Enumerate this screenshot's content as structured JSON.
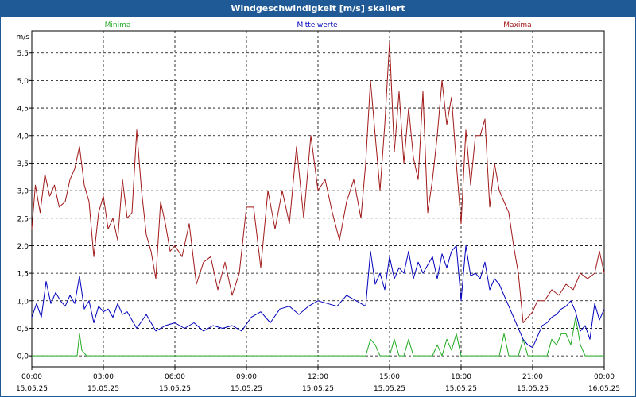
{
  "window": {
    "title": "Windgeschwindigkeit [m/s] skaliert"
  },
  "chart_data": {
    "type": "line",
    "title": "Windgeschwindigkeit [m/s] skaliert",
    "ylabel": "m/s",
    "xlabel": "",
    "ylim": [
      -0.2,
      5.9
    ],
    "xlim": [
      0,
      24
    ],
    "yticks": [
      "0,0",
      "0,5",
      "1,0",
      "1,5",
      "2,0",
      "2,5",
      "3,0",
      "3,5",
      "4,0",
      "4,5",
      "5,0",
      "5,5"
    ],
    "yticks_values": [
      0,
      0.5,
      1.0,
      1.5,
      2.0,
      2.5,
      3.0,
      3.5,
      4.0,
      4.5,
      5.0,
      5.5
    ],
    "xticks": [
      {
        "h": 0,
        "time": "00:00",
        "date": "15.05.25"
      },
      {
        "h": 3,
        "time": "03:00",
        "date": "15.05.25"
      },
      {
        "h": 6,
        "time": "06:00",
        "date": "15.05.25"
      },
      {
        "h": 9,
        "time": "09:00",
        "date": "15.05.25"
      },
      {
        "h": 12,
        "time": "12:00",
        "date": "15.05.25"
      },
      {
        "h": 15,
        "time": "15:00",
        "date": "15.05.25"
      },
      {
        "h": 18,
        "time": "18:00",
        "date": "15.05.25"
      },
      {
        "h": 21,
        "time": "21:00",
        "date": "15.05.25"
      },
      {
        "h": 24,
        "time": "00:00",
        "date": "16.05.25"
      }
    ],
    "grid": true,
    "legend_position": "top",
    "series": [
      {
        "name": "Minima",
        "color": "#22aa22",
        "x": [
          0,
          1.9,
          2.0,
          2.1,
          2.3,
          14.0,
          14.2,
          14.4,
          14.6,
          15.0,
          15.2,
          15.4,
          15.6,
          15.8,
          16.0,
          16.2,
          16.4,
          16.6,
          16.8,
          17.0,
          17.2,
          17.4,
          17.6,
          17.8,
          18.0,
          19.6,
          19.8,
          20.0,
          20.4,
          20.6,
          20.8,
          21.0,
          21.2,
          21.4,
          21.6,
          21.8,
          22.0,
          22.2,
          22.4,
          22.6,
          22.8,
          23.0,
          23.2,
          23.4,
          24.0
        ],
        "values": [
          0,
          0,
          0.4,
          0.1,
          0,
          0,
          0.3,
          0.2,
          0,
          0,
          0.3,
          0,
          0,
          0.3,
          0,
          0,
          0,
          0,
          0,
          0.2,
          0,
          0.3,
          0.1,
          0.4,
          0,
          0,
          0.4,
          0,
          0,
          0.3,
          0,
          0,
          0,
          0,
          0,
          0.3,
          0.2,
          0.4,
          0.4,
          0.2,
          0.7,
          0.2,
          0,
          0,
          0
        ]
      },
      {
        "name": "Mittelwerte",
        "color": "#0000bb",
        "x": [
          0,
          0.2,
          0.4,
          0.6,
          0.8,
          1.0,
          1.2,
          1.4,
          1.6,
          1.8,
          2.0,
          2.2,
          2.4,
          2.6,
          2.8,
          3.0,
          3.2,
          3.4,
          3.6,
          3.8,
          4.0,
          4.4,
          4.8,
          5.2,
          5.6,
          6.0,
          6.4,
          6.8,
          7.2,
          7.6,
          8.0,
          8.4,
          8.8,
          9.2,
          9.6,
          10.0,
          10.4,
          10.8,
          11.2,
          11.6,
          12.0,
          12.4,
          12.8,
          13.2,
          13.6,
          14.0,
          14.2,
          14.4,
          14.6,
          14.8,
          15.0,
          15.2,
          15.4,
          15.6,
          15.8,
          16.0,
          16.2,
          16.4,
          16.6,
          16.8,
          17.0,
          17.2,
          17.4,
          17.6,
          17.8,
          18.0,
          18.2,
          18.4,
          18.6,
          18.8,
          19.0,
          19.2,
          19.4,
          19.6,
          19.8,
          20.0,
          20.2,
          20.4,
          20.6,
          20.8,
          21.0,
          21.2,
          21.4,
          21.6,
          21.8,
          22.0,
          22.2,
          22.4,
          22.6,
          22.8,
          23.0,
          23.2,
          23.4,
          23.6,
          23.8,
          24.0
        ],
        "values": [
          0.7,
          0.95,
          0.7,
          1.35,
          0.95,
          1.15,
          1.0,
          0.9,
          1.1,
          0.95,
          1.45,
          0.85,
          1.0,
          0.6,
          0.9,
          0.8,
          0.85,
          0.7,
          0.95,
          0.75,
          0.8,
          0.5,
          0.75,
          0.45,
          0.55,
          0.6,
          0.5,
          0.6,
          0.45,
          0.55,
          0.5,
          0.55,
          0.45,
          0.7,
          0.8,
          0.6,
          0.85,
          0.9,
          0.75,
          0.9,
          1.0,
          0.95,
          0.9,
          1.1,
          1.0,
          0.9,
          1.9,
          1.3,
          1.5,
          1.2,
          1.8,
          1.4,
          1.6,
          1.5,
          1.9,
          1.4,
          1.7,
          1.5,
          1.65,
          1.8,
          1.4,
          1.85,
          1.6,
          1.9,
          2.0,
          1.0,
          2.0,
          1.45,
          1.5,
          1.4,
          1.7,
          1.2,
          1.4,
          1.3,
          1.1,
          0.9,
          0.7,
          0.5,
          0.3,
          0.2,
          0.15,
          0.35,
          0.55,
          0.6,
          0.7,
          0.75,
          0.85,
          0.9,
          1.0,
          0.8,
          0.45,
          0.55,
          0.3,
          0.95,
          0.65,
          0.85
        ]
      },
      {
        "name": "Maxima",
        "color": "#a01818",
        "x": [
          0,
          0.15,
          0.35,
          0.55,
          0.75,
          0.95,
          1.15,
          1.4,
          1.6,
          1.8,
          2.0,
          2.2,
          2.4,
          2.6,
          2.8,
          3.0,
          3.2,
          3.4,
          3.6,
          3.8,
          4.0,
          4.2,
          4.4,
          4.6,
          4.8,
          5.0,
          5.2,
          5.4,
          5.6,
          5.8,
          6.0,
          6.3,
          6.6,
          6.9,
          7.2,
          7.5,
          7.8,
          8.1,
          8.4,
          8.7,
          9.0,
          9.3,
          9.6,
          9.9,
          10.2,
          10.5,
          10.8,
          11.1,
          11.4,
          11.7,
          12.0,
          12.3,
          12.6,
          12.9,
          13.2,
          13.5,
          13.8,
          14.0,
          14.2,
          14.4,
          14.6,
          14.8,
          15.0,
          15.2,
          15.4,
          15.6,
          15.8,
          16.0,
          16.2,
          16.4,
          16.6,
          16.8,
          17.0,
          17.2,
          17.4,
          17.6,
          17.8,
          18.0,
          18.2,
          18.4,
          18.6,
          18.8,
          19.0,
          19.2,
          19.4,
          19.6,
          19.8,
          20.0,
          20.2,
          20.4,
          20.6,
          20.8,
          21.0,
          21.2,
          21.5,
          21.8,
          22.1,
          22.4,
          22.7,
          23.0,
          23.3,
          23.6,
          23.8,
          24.0
        ],
        "values": [
          2.3,
          3.1,
          2.6,
          3.3,
          2.9,
          3.1,
          2.7,
          2.8,
          3.2,
          3.4,
          3.8,
          3.1,
          2.8,
          1.8,
          2.6,
          2.9,
          2.3,
          2.5,
          2.1,
          3.2,
          2.5,
          2.6,
          4.1,
          3.0,
          2.2,
          1.9,
          1.4,
          2.8,
          2.4,
          1.9,
          2.0,
          1.8,
          2.4,
          1.3,
          1.7,
          1.8,
          1.2,
          1.7,
          1.1,
          1.5,
          2.7,
          2.7,
          1.6,
          3.0,
          2.3,
          3.0,
          2.4,
          3.8,
          2.5,
          4.0,
          3.0,
          3.2,
          2.6,
          2.1,
          2.8,
          3.2,
          2.5,
          3.5,
          5.0,
          4.0,
          3.0,
          4.2,
          5.7,
          3.7,
          4.8,
          3.5,
          4.5,
          3.6,
          3.2,
          4.8,
          2.6,
          3.2,
          4.0,
          5.0,
          4.2,
          4.7,
          3.5,
          2.4,
          4.1,
          3.1,
          4.0,
          4.0,
          4.3,
          2.7,
          3.5,
          3.0,
          2.8,
          2.6,
          2.0,
          1.5,
          0.6,
          0.7,
          0.8,
          1.0,
          1.0,
          1.2,
          1.1,
          1.3,
          1.2,
          1.5,
          1.4,
          1.5,
          1.9,
          1.5
        ]
      }
    ]
  }
}
